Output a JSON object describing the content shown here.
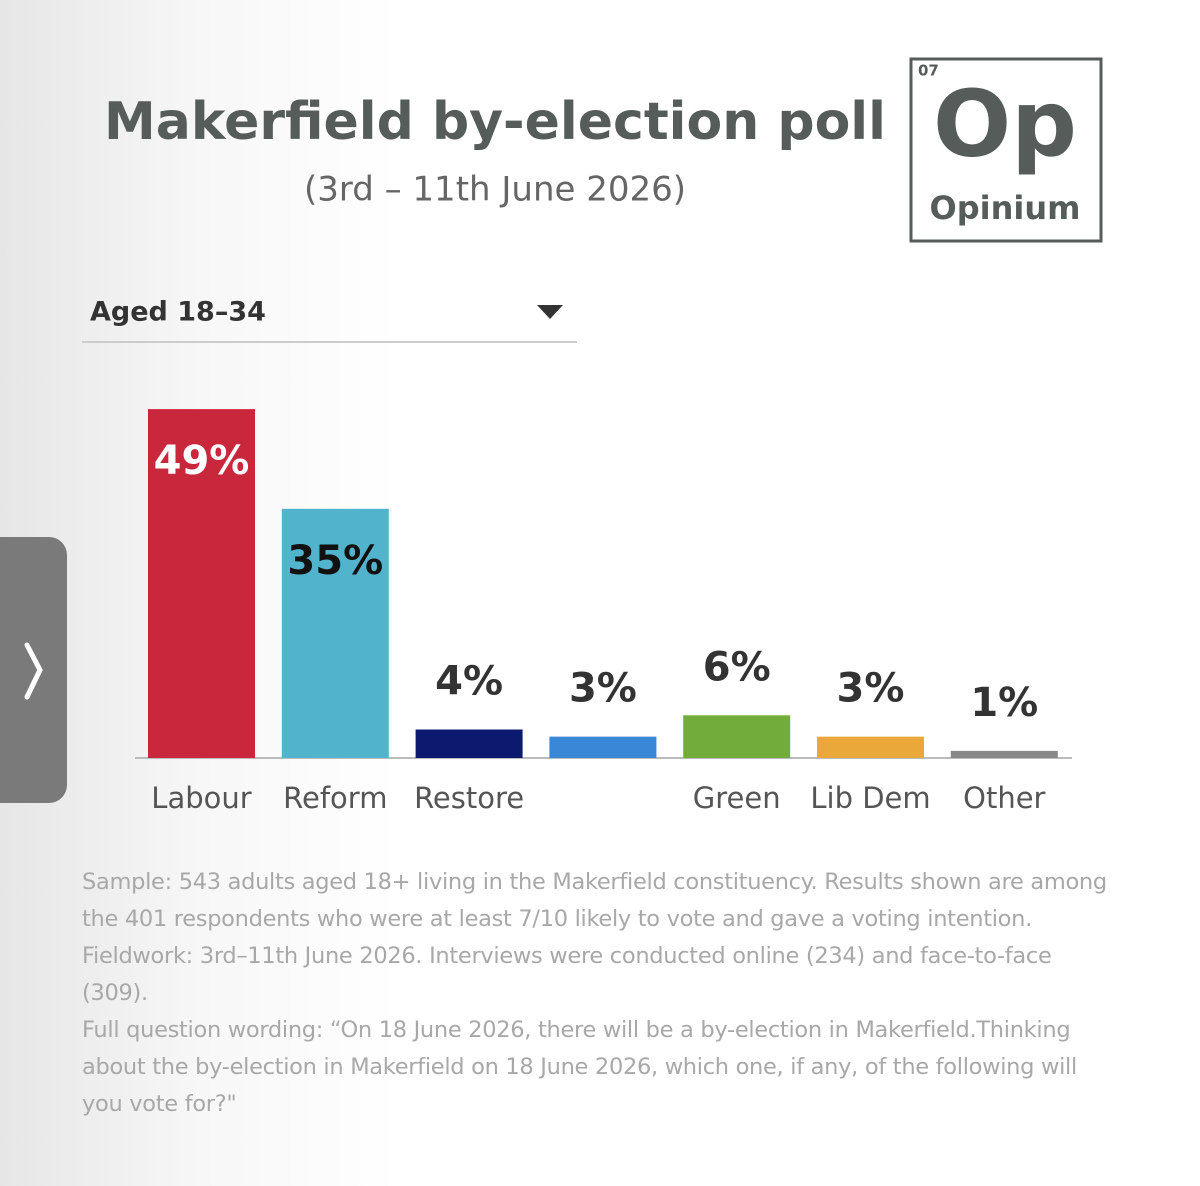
{
  "chart_data": {
    "type": "bar",
    "title": "Makerfield by-election poll",
    "subtitle": "(3rd – 11th June 2026)",
    "filter": "Aged 18–34",
    "categories": [
      "Labour",
      "Reform",
      "Restore",
      null,
      "Green",
      "Lib Dem",
      "Other"
    ],
    "values": [
      49,
      35,
      4,
      3,
      6,
      3,
      1
    ],
    "value_labels": [
      "49%",
      "35%",
      "4%",
      "3%",
      "6%",
      "3%",
      "1%"
    ],
    "colors": [
      "#c8273c",
      "#52b3cc",
      "#0b1a6e",
      "#3a87d8",
      "#72ad3c",
      "#eba83a",
      "#888888"
    ]
  },
  "logo": {
    "number": "07",
    "symbol": "Op",
    "name": "Opinium"
  },
  "footnote": [
    "Sample: 543 adults aged 18+ living in the Makerfield constituency. Results shown are among the 401 respondents who were at least 7/10 likely to vote and gave a voting intention. Fieldwork: 3rd–11th June 2026. Interviews were conducted online (234) and face-to-face (309).",
    "Full question wording: “On 18 June 2026, there will be a by-election in Makerfield.Thinking about the by-election in Makerfield on 18 June 2026, which one, if any, of the following will you vote for?\""
  ]
}
